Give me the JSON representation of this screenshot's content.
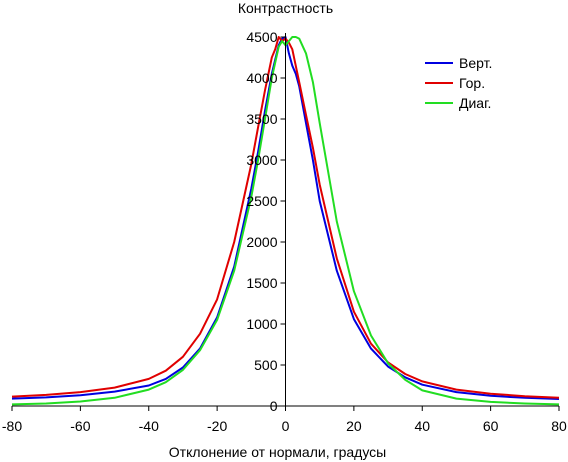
{
  "chart_data": {
    "type": "line",
    "title": "",
    "xlabel": "Отклонение от нормали, градусы",
    "ylabel": "Контрастность",
    "xlim": [
      -80,
      80
    ],
    "ylim": [
      0,
      4500
    ],
    "x_ticks": [
      -80,
      -60,
      -40,
      -20,
      0,
      20,
      40,
      60,
      80
    ],
    "y_ticks": [
      0,
      500,
      1000,
      1500,
      2000,
      2500,
      3000,
      3500,
      4000,
      4500
    ],
    "grid": false,
    "legend_position": "top-right",
    "series": [
      {
        "name": "Верт.",
        "color": "#0000e0",
        "x": [
          -80,
          -70,
          -60,
          -50,
          -40,
          -35,
          -30,
          -25,
          -20,
          -15,
          -10,
          -8,
          -6,
          -4,
          -2,
          -1,
          0,
          1,
          2,
          3,
          4,
          6,
          8,
          10,
          15,
          20,
          25,
          30,
          35,
          40,
          50,
          60,
          70,
          80
        ],
        "y": [
          90,
          105,
          130,
          175,
          250,
          330,
          470,
          700,
          1080,
          1700,
          2650,
          3100,
          3600,
          4050,
          4400,
          4480,
          4500,
          4300,
          4150,
          4050,
          3900,
          3450,
          3000,
          2500,
          1650,
          1060,
          700,
          480,
          350,
          260,
          170,
          125,
          100,
          85
        ]
      },
      {
        "name": "Гор.",
        "color": "#e00000",
        "x": [
          -80,
          -70,
          -60,
          -50,
          -40,
          -35,
          -30,
          -25,
          -20,
          -15,
          -10,
          -8,
          -6,
          -4,
          -3,
          -2,
          -1,
          0,
          1,
          2,
          4,
          6,
          8,
          10,
          15,
          20,
          25,
          30,
          35,
          40,
          50,
          60,
          70,
          80
        ],
        "y": [
          115,
          135,
          170,
          225,
          330,
          430,
          600,
          880,
          1300,
          2000,
          2950,
          3400,
          3850,
          4250,
          4350,
          4500,
          4450,
          4480,
          4430,
          4350,
          3950,
          3550,
          3150,
          2700,
          1800,
          1150,
          760,
          530,
          390,
          300,
          200,
          150,
          120,
          100
        ]
      },
      {
        "name": "Диаг.",
        "color": "#22dd22",
        "x": [
          -80,
          -70,
          -60,
          -50,
          -40,
          -35,
          -30,
          -25,
          -20,
          -15,
          -10,
          -8,
          -6,
          -4,
          -2,
          -1,
          0,
          1,
          2,
          3,
          4,
          6,
          8,
          10,
          15,
          20,
          25,
          30,
          35,
          40,
          50,
          60,
          70,
          80
        ],
        "y": [
          20,
          30,
          55,
          100,
          200,
          290,
          440,
          680,
          1050,
          1650,
          2550,
          3000,
          3500,
          4000,
          4380,
          4450,
          4400,
          4450,
          4500,
          4500,
          4480,
          4300,
          3950,
          3450,
          2250,
          1400,
          860,
          520,
          320,
          190,
          90,
          50,
          30,
          20
        ]
      }
    ]
  }
}
